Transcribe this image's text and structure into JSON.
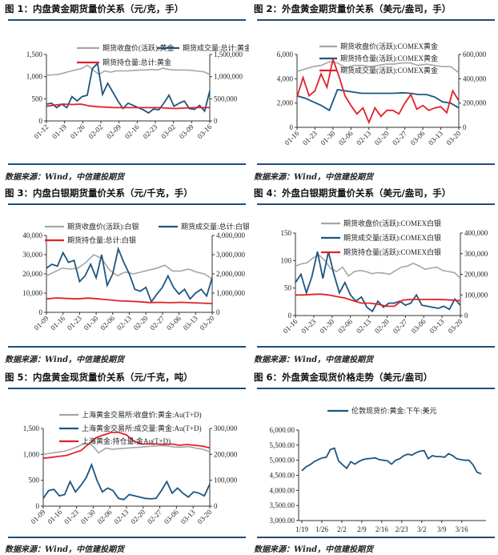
{
  "colors": {
    "price": "#a6a6a6",
    "blue": "#1d5680",
    "red": "#e32129",
    "rule": "#1f4e79"
  },
  "source": "数据来源：Wind，中信建投期货",
  "charts": [
    {
      "title": "图 1：内盘黄金期货量价关系（元/克，手）",
      "type": "line",
      "left_axis": {
        "range": [
          0,
          1500
        ],
        "ticks": [
          "0",
          "500",
          "1,000",
          "1,500"
        ]
      },
      "right_axis": {
        "range": [
          0,
          1500000
        ],
        "ticks": [
          "0",
          "500,000",
          "1,000,000",
          "1,500,000"
        ]
      },
      "x_labels": [
        "01-12",
        "01-19",
        "01-26",
        "02-02",
        "02-09",
        "02-16",
        "02-23",
        "03-02",
        "03-09",
        "03-16"
      ],
      "series": [
        {
          "name": "期货收盘价(活跃):黄金",
          "axis": "left",
          "color": "price",
          "values": [
            1030,
            1040,
            1050,
            1080,
            1120,
            1150,
            1180,
            1260,
            1150,
            1050,
            1130,
            1100,
            1130,
            1130,
            1130,
            1140,
            1150,
            1150,
            1160,
            1150,
            1190,
            1160,
            1150,
            1150,
            1150,
            1140,
            1120,
            1110,
            1050
          ]
        },
        {
          "name": "期货成交量:总计:黄金",
          "axis": "right",
          "color": "blue",
          "values": [
            380000,
            400000,
            300000,
            380000,
            300000,
            550000,
            450000,
            550000,
            580000,
            1180000,
            1300000,
            600000,
            850000,
            650000,
            450000,
            280000,
            400000,
            350000,
            300000,
            250000,
            180000,
            270000,
            250000,
            400000,
            580000,
            330000,
            400000,
            450000,
            280000,
            260000,
            350000,
            220000,
            680000
          ]
        },
        {
          "name": "期货持仓量:总计:黄金",
          "axis": "right",
          "color": "red",
          "values": [
            330000,
            360000,
            380000,
            370000,
            380000,
            340000,
            320000,
            310000,
            300000,
            300000,
            300000,
            300000,
            300000,
            300000,
            290000,
            280000,
            290000,
            300000,
            300000,
            300000
          ]
        }
      ]
    },
    {
      "title": "图 2：外盘黄金期货量价关系（美元/盎司，手）",
      "type": "line",
      "left_axis": {
        "range": [
          0,
          6000
        ],
        "ticks": [
          "0",
          "2,000",
          "4,000",
          "6,000"
        ]
      },
      "right_axis": {
        "range": [
          0,
          600000
        ],
        "ticks": [
          "0",
          "200,000",
          "400,000",
          "600,000"
        ]
      },
      "x_labels": [
        "01-16",
        "01-23",
        "01-30",
        "02-06",
        "02-13",
        "02-20",
        "02-27",
        "03-06",
        "03-13",
        "03-20"
      ],
      "series": [
        {
          "name": "期货收盘价(活跃):COMEX黄金",
          "axis": "left",
          "color": "price",
          "values": [
            4600,
            4800,
            5000,
            5100,
            5400,
            5300,
            4900,
            5100,
            5100,
            5000,
            5100,
            5200,
            5200,
            5300,
            5300,
            5100,
            5200,
            5100,
            5000,
            5000,
            4500
          ]
        },
        {
          "name": "期货持仓量(活跃):COMEX黄金",
          "axis": "right",
          "color": "blue",
          "values": [
            260000,
            240000,
            210000,
            180000,
            140000,
            310000,
            300000,
            290000,
            280000,
            280000,
            280000,
            280000,
            280000,
            285000,
            280000,
            270000,
            270000,
            250000,
            210000,
            200000,
            160000
          ]
        },
        {
          "name": "期货成交量(活跃):COMEX黄金",
          "axis": "right",
          "color": "red",
          "values": [
            250000,
            410000,
            260000,
            300000,
            440000,
            330000,
            560000,
            420000,
            260000,
            180000,
            110000,
            160000,
            40000,
            160000,
            90000,
            140000,
            140000,
            110000,
            200000,
            270000,
            150000,
            180000,
            140000,
            160000,
            170000,
            120000,
            300000,
            220000
          ]
        }
      ]
    },
    {
      "title": "图 3：内盘白银期货量价关系（元/千克，手）",
      "type": "line",
      "left_axis": {
        "range": [
          0,
          40000
        ],
        "ticks": [
          "0",
          "10,000",
          "20,000",
          "30,000",
          "40,000"
        ]
      },
      "right_axis": {
        "range": [
          0,
          4000000
        ],
        "ticks": [
          "0",
          "1,000,000",
          "2,000,000",
          "3,000,000",
          "4,000,000"
        ]
      },
      "x_labels": [
        "01-09",
        "01-16",
        "01-23",
        "01-30",
        "02-06",
        "02-13",
        "02-20",
        "02-27",
        "03-06",
        "03-13",
        "03-20"
      ],
      "series": [
        {
          "name": "期货收盘价(活跃):白银",
          "axis": "left",
          "color": "price",
          "values": [
            19000,
            21000,
            23000,
            22500,
            23000,
            26000,
            30000,
            28000,
            22000,
            19000,
            21000,
            20000,
            21000,
            22000,
            23000,
            24500,
            21500,
            21500,
            22500,
            21000,
            20000,
            17500
          ]
        },
        {
          "name": "期货成交量:总计:白银",
          "axis": "right",
          "color": "blue",
          "values": [
            2300000,
            2500000,
            2400000,
            3100000,
            2600000,
            2700000,
            1600000,
            1900000,
            2500000,
            1800000,
            3000000,
            1400000,
            2000000,
            3300000,
            2600000,
            2000000,
            1200000,
            1100000,
            1300000,
            550000,
            950000,
            1300000,
            1900000,
            1300000,
            950000,
            1200000,
            700000,
            1000000,
            1200000,
            850000,
            1800000
          ]
        },
        {
          "name": "期货持仓量:总计:白银",
          "axis": "left",
          "color": "red",
          "values": [
            7000,
            7500,
            7200,
            7000,
            7400,
            7000,
            6500,
            6000,
            5800,
            5500,
            5100,
            5200,
            5000,
            5200,
            5000,
            4800,
            4600
          ]
        }
      ]
    },
    {
      "title": "图 4：外盘白银期货量价关系（美元/盎司，手）",
      "type": "line",
      "left_axis": {
        "range": [
          0,
          150
        ],
        "ticks": [
          "0",
          "50",
          "100",
          "150"
        ]
      },
      "right_axis": {
        "range": [
          0,
          400000
        ],
        "ticks": [
          "0",
          "100,000",
          "200,000",
          "300,000",
          "400,000"
        ]
      },
      "x_labels": [
        "01-16",
        "01-23",
        "01-30",
        "02-06",
        "02-13",
        "02-20",
        "02-27",
        "03-06",
        "03-13",
        "03-20"
      ],
      "series": [
        {
          "name": "期货收盘价(活跃):COMEX白银",
          "axis": "left",
          "color": "price",
          "values": [
            90,
            94,
            96,
            105,
            110,
            100,
            85,
            80,
            88,
            72,
            80,
            82,
            80,
            76,
            78,
            77,
            75,
            82,
            88,
            90,
            95,
            90,
            84,
            86,
            88,
            82,
            80,
            78,
            68
          ]
        },
        {
          "name": "期货成交量(活跃):COMEX白银",
          "axis": "right",
          "color": "blue",
          "values": [
            160000,
            200000,
            110000,
            190000,
            310000,
            180000,
            310000,
            200000,
            110000,
            160000,
            100000,
            70000,
            90000,
            40000,
            20000,
            70000,
            40000,
            60000,
            60000,
            70000,
            50000,
            60000,
            100000,
            50000,
            45000,
            40000,
            35000,
            45000,
            30000,
            80000,
            50000
          ]
        },
        {
          "name": "期货持仓量(活跃):COMEX白银",
          "axis": "right",
          "color": "red",
          "values": [
            100000,
            100000,
            102000,
            104000,
            100000,
            92000,
            85000,
            72000,
            60000,
            60000,
            55000,
            45000,
            45000,
            75000,
            78000,
            78000,
            78000,
            78000,
            77000,
            75000,
            72000
          ]
        }
      ]
    },
    {
      "title": "图 5：内盘黄金现货量价关系（元/千克，吨）",
      "type": "line",
      "left_axis": {
        "range": [
          0,
          1500
        ],
        "ticks": [
          "0",
          "500",
          "1,000",
          "1,500"
        ]
      },
      "right_axis": {
        "range": [
          0,
          300000
        ],
        "ticks": [
          "0",
          "100,000",
          "200,000",
          "300,000"
        ]
      },
      "x_labels": [
        "01-09",
        "01-16",
        "01-23",
        "01-30",
        "02-06",
        "02-13",
        "02-20",
        "02-27",
        "03-06",
        "03-13",
        "03-20"
      ],
      "series": [
        {
          "name": "上海黄金交易所:收盘价:黄金:Au(T+D)",
          "axis": "left",
          "color": "price",
          "values": [
            1000,
            1020,
            1040,
            1060,
            1100,
            1150,
            1220,
            1180,
            1030,
            1120,
            1100,
            1110,
            1120,
            1130,
            1140,
            1150,
            1160,
            1170,
            1160,
            1140,
            1140,
            1150,
            1120,
            1100,
            1050
          ]
        },
        {
          "name": "上海黄金交易所:成交量:黄金:Au(T+D)",
          "axis": "right",
          "color": "blue",
          "values": [
            30000,
            60000,
            65000,
            40000,
            45000,
            95000,
            55000,
            80000,
            110000,
            160000,
            100000,
            55000,
            70000,
            60000,
            30000,
            25000,
            45000,
            40000,
            35000,
            30000,
            28000,
            30000,
            60000,
            95000,
            50000,
            70000,
            50000,
            35000,
            55000,
            50000,
            40000,
            85000
          ]
        },
        {
          "name": "上海黄金:持仓量:金Au(T+D)",
          "axis": "right",
          "color": "red",
          "values": [
            185000,
            188000,
            192000,
            195000,
            205000,
            215000,
            240000,
            265000,
            275000,
            285000,
            285000,
            275000,
            250000,
            240000,
            240000,
            240000,
            238000,
            240000,
            235000,
            238000,
            235000,
            232000,
            225000
          ]
        }
      ]
    },
    {
      "title": "图 6：外盘黄金现货价格走势（美元/盎司）",
      "type": "line",
      "left_axis": {
        "range": [
          3000,
          6000
        ],
        "ticks": [
          "3,000.00",
          "3,500.00",
          "4,000.00",
          "4,500.00",
          "5,000.00",
          "5,500.00",
          "6,000.00"
        ]
      },
      "x_labels": [
        "1/19",
        "1/26",
        "2/2",
        "2/9",
        "2/16",
        "2/23",
        "3/2",
        "3/9",
        "3/16"
      ],
      "series": [
        {
          "name": "伦敦现货价:黄金:下午:美元",
          "axis": "left",
          "color": "blue",
          "values": [
            4650,
            4780,
            4850,
            4950,
            5020,
            5080,
            5100,
            5350,
            5400,
            4980,
            4850,
            4730,
            4950,
            4870,
            4960,
            5020,
            5050,
            5060,
            5080,
            5020,
            5000,
            4980,
            4870,
            5000,
            5050,
            5150,
            5200,
            5170,
            5250,
            5300,
            5320,
            5050,
            5150,
            5120,
            5120,
            5100,
            5220,
            5150,
            5050,
            5020,
            5000,
            5000,
            4850,
            4600,
            4550
          ]
        }
      ]
    }
  ]
}
